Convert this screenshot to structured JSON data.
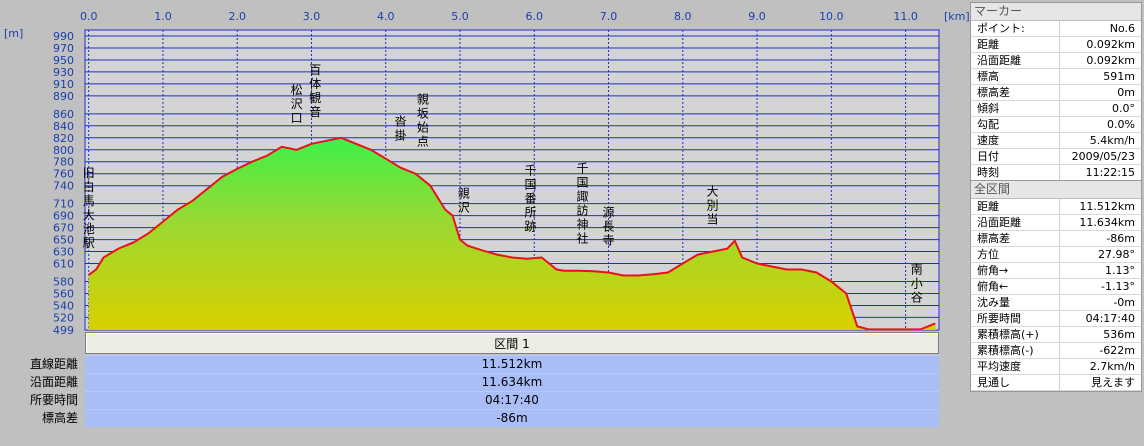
{
  "chart_data": {
    "type": "area",
    "x_unit": "[km]",
    "y_unit": "[m]",
    "xlim": [
      -0.05,
      11.45
    ],
    "ylim": [
      499,
      1000
    ],
    "x_ticks": [
      "0.0",
      "1.0",
      "2.0",
      "3.0",
      "4.0",
      "5.0",
      "6.0",
      "7.0",
      "8.0",
      "9.0",
      "10.0",
      "11.0"
    ],
    "y_ticks": [
      "499",
      "520",
      "540",
      "560",
      "580",
      "610",
      "630",
      "650",
      "670",
      "690",
      "710",
      "740",
      "760",
      "780",
      "800",
      "820",
      "840",
      "860",
      "890",
      "910",
      "930",
      "950",
      "970",
      "990"
    ],
    "x": [
      0,
      0.1,
      0.2,
      0.4,
      0.6,
      0.8,
      1.0,
      1.2,
      1.4,
      1.6,
      1.8,
      2.0,
      2.2,
      2.4,
      2.6,
      2.8,
      3.0,
      3.2,
      3.4,
      3.6,
      3.8,
      4.0,
      4.2,
      4.4,
      4.6,
      4.8,
      4.9,
      5.0,
      5.1,
      5.3,
      5.5,
      5.7,
      5.9,
      6.1,
      6.3,
      6.4,
      6.6,
      6.8,
      7.0,
      7.2,
      7.4,
      7.6,
      7.8,
      8.0,
      8.2,
      8.4,
      8.6,
      8.7,
      8.8,
      9.0,
      9.2,
      9.4,
      9.6,
      9.8,
      10.0,
      10.2,
      10.35,
      10.5,
      10.7,
      10.9,
      11.0,
      11.2,
      11.3,
      11.4
    ],
    "y": [
      591,
      600,
      620,
      635,
      645,
      660,
      680,
      700,
      715,
      735,
      755,
      768,
      780,
      790,
      805,
      800,
      810,
      815,
      820,
      810,
      800,
      785,
      770,
      760,
      740,
      700,
      690,
      650,
      640,
      632,
      625,
      620,
      618,
      620,
      600,
      598,
      598,
      597,
      595,
      590,
      590,
      592,
      595,
      610,
      625,
      630,
      635,
      648,
      620,
      610,
      605,
      600,
      600,
      595,
      580,
      560,
      505,
      500,
      500,
      500,
      500,
      500,
      505,
      510
    ],
    "markers": [
      {
        "label": "旧白馬大池駅",
        "x": 0.0
      },
      {
        "label": "松沢口",
        "x": 2.8
      },
      {
        "label": "百体観音",
        "x": 3.05
      },
      {
        "label": "沓掛",
        "x": 4.2
      },
      {
        "label": "親坂始点",
        "x": 4.5
      },
      {
        "label": "親沢",
        "x": 5.05
      },
      {
        "label": "千国番所跡",
        "x": 5.95
      },
      {
        "label": "千国諏訪神社",
        "x": 6.65
      },
      {
        "label": "源長寺",
        "x": 7.0
      },
      {
        "label": "大別当",
        "x": 8.4
      },
      {
        "label": "南小谷",
        "x": 11.15
      }
    ]
  },
  "section": {
    "header": "区間 1",
    "rows": [
      {
        "label": "直線距離",
        "value": "11.512km"
      },
      {
        "label": "沿面距離",
        "value": "11.634km"
      },
      {
        "label": "所要時間",
        "value": "04:17:40"
      },
      {
        "label": "標高差",
        "value": "-86m"
      }
    ]
  },
  "marker_panel": {
    "title": "マーカー",
    "rows": [
      {
        "k": "ポイント:",
        "v": "No.6"
      },
      {
        "k": "距離",
        "v": "0.092km"
      },
      {
        "k": "沿面距離",
        "v": "0.092km"
      },
      {
        "k": "標高",
        "v": "591m"
      },
      {
        "k": "標高差",
        "v": "0m"
      },
      {
        "k": "傾斜",
        "v": "0.0°"
      },
      {
        "k": "勾配",
        "v": "0.0%"
      },
      {
        "k": "速度",
        "v": "5.4km/h"
      },
      {
        "k": "日付",
        "v": "2009/05/23"
      },
      {
        "k": "時刻",
        "v": "11:22:15"
      }
    ]
  },
  "all_panel": {
    "title": "全区間",
    "rows": [
      {
        "k": "距離",
        "v": "11.512km"
      },
      {
        "k": "沿面距離",
        "v": "11.634km"
      },
      {
        "k": "標高差",
        "v": "-86m"
      },
      {
        "k": "方位",
        "v": "27.98°"
      },
      {
        "k": "俯角→",
        "v": "1.13°"
      },
      {
        "k": "俯角←",
        "v": "-1.13°"
      },
      {
        "k": "沈み量",
        "v": "-0m"
      },
      {
        "k": "所要時間",
        "v": "04:17:40"
      },
      {
        "k": "累積標高(+)",
        "v": "536m"
      },
      {
        "k": "累積標高(-)",
        "v": "-622m"
      },
      {
        "k": "平均速度",
        "v": "2.7km/h"
      },
      {
        "k": "見通し",
        "v": "見えます"
      }
    ]
  },
  "colors": {
    "plot_bg": "#d4d4d4",
    "grid": "#1e2fc8",
    "profile_line": "#e8121a",
    "fill_top": "#2ee83a",
    "fill_bottom": "#c8d400",
    "tick_text": "#1a3fae"
  }
}
